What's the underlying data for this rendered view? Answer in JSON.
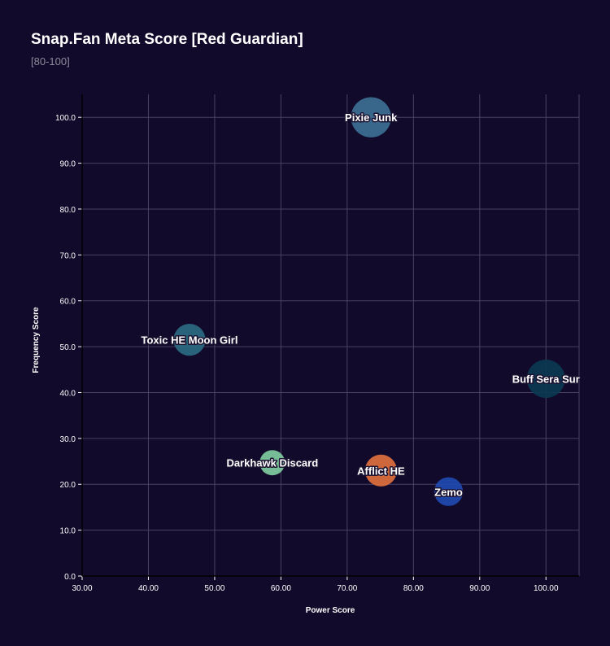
{
  "chart_data": {
    "type": "scatter",
    "title": "Snap.Fan Meta Score [Red Guardian]",
    "subtitle": "[80-100]",
    "xlabel": "Power Score",
    "ylabel": "Frequency Score",
    "xlim": [
      30,
      105
    ],
    "ylim": [
      0,
      105
    ],
    "x_ticks": [
      "30.00",
      "40.00",
      "50.00",
      "60.00",
      "70.00",
      "80.00",
      "90.00",
      "100.00"
    ],
    "y_ticks": [
      "0.0",
      "10.0",
      "20.0",
      "30.0",
      "40.0",
      "50.0",
      "60.0",
      "70.0",
      "80.0",
      "90.0",
      "100.0"
    ],
    "grid": true,
    "points": [
      {
        "label": "Pixie Junk",
        "x": 73.6,
        "y": 100.0,
        "size": 3.0,
        "color": "#3d6f94"
      },
      {
        "label": "Toxic HE Moon Girl",
        "x": 46.2,
        "y": 51.5,
        "size": 1.6,
        "color": "#2b6a82"
      },
      {
        "label": "Buff Sera Sur",
        "x": 100.0,
        "y": 43.0,
        "size": 2.3,
        "color": "#0b3a52"
      },
      {
        "label": "Darkhawk Discard",
        "x": 58.7,
        "y": 24.7,
        "size": 1.0,
        "color": "#7fcca0"
      },
      {
        "label": "Afflict HE",
        "x": 75.1,
        "y": 23.0,
        "size": 1.6,
        "color": "#e0703e"
      },
      {
        "label": "Zemo",
        "x": 85.3,
        "y": 18.4,
        "size": 1.3,
        "color": "#1f4ab0"
      }
    ]
  }
}
